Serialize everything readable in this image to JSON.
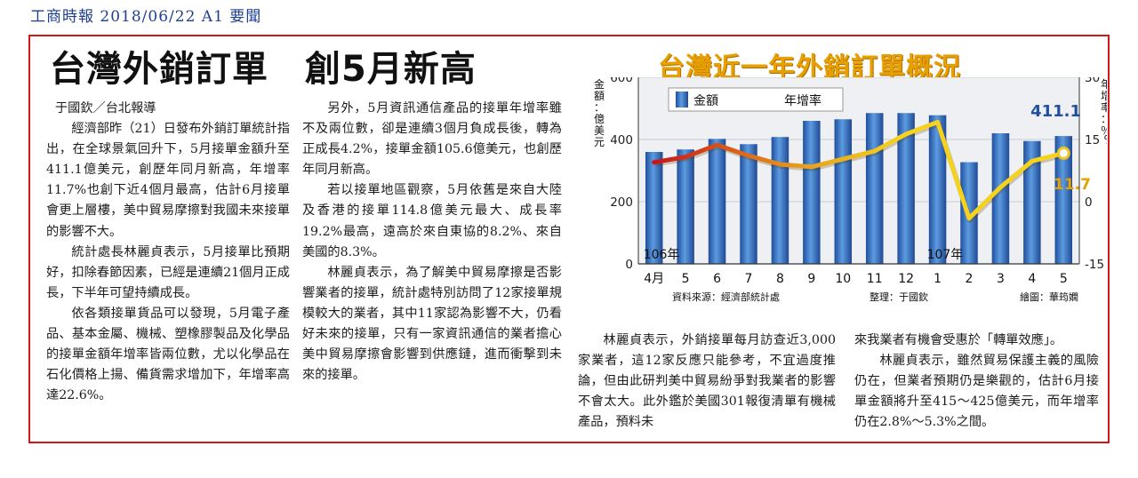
{
  "source_line": "工商時報 2018/06/22 A1 要聞",
  "article": {
    "headline": "台灣外銷訂單　創5月新高",
    "byline": "于國欽／台北報導",
    "col1": [
      "經濟部昨（21）日發布外銷訂單統計指出，在全球景氣回升下，5月接單金額升至411.1億美元，創歷年同月新高，年增率11.7%也創下近4個月最高，估計6月接單會更上層樓，美中貿易摩擦對我國未來接單的影響不大。",
      "統計處長林麗貞表示，5月接單比預期好，扣除春節因素，已經是連續21個月正成長，下半年可望持續成長。",
      "依各類接單貨品可以發現，5月電子產品、基本金屬、機械、塑橡膠製品及化學品的接單金額年增率皆兩位數，尤以化學品在石化價格上揚、備貨需求增加下，年增率高達22.6%。"
    ],
    "col2": [
      "另外，5月資訊通信產品的接單年增率雖不及兩位數，卻是連續3個月負成長後，轉為正成長4.2%，接單金額105.6億美元，也創歷年同月新高。",
      "若以接單地區觀察，5月依舊是來自大陸及香港的接單114.8億美元最大、成長率19.2%最高，遠高於來自東協的8.2%、來自美國的8.3%。",
      "林麗貞表示，為了解美中貿易摩擦是否影響業者的接單，統計處特別訪問了12家接單規模較大的業者，其中11家認為影響不大，仍看好未來的接單，只有一家資訊通信的業者擔心美中貿易摩擦會影響到供應鏈，進而衝擊到未來的接單。"
    ],
    "col3": [
      "林麗貞表示，外銷接單每月訪查近3,000家業者，這12家反應只能參考，不宜過度推論，但由此研判美中貿易紛爭對我業者的影響不會太大。此外鑑於美國301報復清單有機械產品，預料未"
    ],
    "col4_cont": "來我業者有機會受惠於「轉單效應」。",
    "col4": [
      "林麗貞表示，雖然貿易保護主義的風險仍在，但業者預期仍是樂觀的，估計6月接單金額將升至415～425億美元，而年增率仍在2.8%～5.3%之間。"
    ]
  },
  "chart_data": {
    "type": "bar",
    "title": "台灣近一年外銷訂單概況",
    "categories": [
      "4月",
      "5",
      "6",
      "7",
      "8",
      "9",
      "10",
      "11",
      "12",
      "1",
      "2",
      "3",
      "4",
      "5"
    ],
    "year_markers": [
      {
        "label": "106年",
        "index": 0
      },
      {
        "label": "107年",
        "index": 9
      }
    ],
    "ylabel_left": "金額：億美元",
    "ylabel_right": "年增率：％",
    "ylim_left": [
      0,
      600
    ],
    "yticks_left": [
      "0",
      "200",
      "400",
      "600"
    ],
    "ylim_right": [
      -15,
      30
    ],
    "yticks_right": [
      "-15",
      "0",
      "15 %",
      "30"
    ],
    "series": [
      {
        "name": "金額",
        "kind": "bar",
        "color": "#2e62b4",
        "values": [
          360,
          368,
          402,
          385,
          408,
          460,
          465,
          485,
          485,
          478,
          327,
          420,
          395,
          411.1
        ]
      },
      {
        "name": "年增率",
        "kind": "line",
        "color": "#f2c61e",
        "values": [
          9.5,
          10.8,
          13.7,
          11.1,
          9.0,
          8.4,
          10.3,
          12.2,
          16.3,
          19.2,
          -4.0,
          3.5,
          9.8,
          11.7
        ]
      }
    ],
    "annotations": {
      "last_value": "411.1",
      "last_rate": "11.7"
    },
    "legend": "top-left",
    "footer": {
      "source": "資料來源：經濟部統計處",
      "editor": "整理：于國欽",
      "artist": "繪圖：華筠嫻"
    }
  }
}
